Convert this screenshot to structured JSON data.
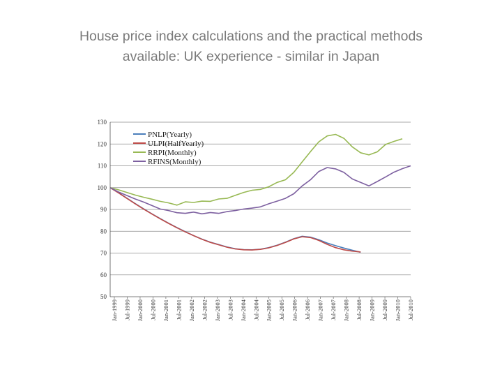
{
  "slide": {
    "title_line1": "House price index calculations and the practical methods",
    "title_line2": "available: UK experience - similar in Japan"
  },
  "chart_data": {
    "type": "line",
    "title": "",
    "xlabel": "",
    "ylabel": "",
    "ylim": [
      50,
      130
    ],
    "yticks": [
      50,
      60,
      70,
      80,
      90,
      100,
      110,
      120,
      130
    ],
    "grid": "horizontal",
    "legend_position": "top-left",
    "x_tick_labels": [
      "Jan-1999",
      "Jul-1999",
      "Jan-2000",
      "Jul-2000",
      "Jan-2001",
      "Jul-2001",
      "Jan-2002",
      "Jul-2002",
      "Jan-2003",
      "Jul-2003",
      "Jan-2004",
      "Jul-2004",
      "Jan-2005",
      "Jul-2005",
      "Jan-2006",
      "Jul-2006",
      "Jan-2007",
      "Jul-2007",
      "Jan-2008",
      "Jul-2008",
      "Jan-2009",
      "Jul-2009",
      "Jan-2010",
      "Jul-2010"
    ],
    "series": [
      {
        "name": "PNLP(Yearly)",
        "color": "#4a7ebb",
        "points": [
          [
            0,
            100
          ],
          [
            1,
            97.7
          ],
          [
            2,
            95.2
          ],
          [
            3,
            92.7
          ],
          [
            4,
            90.3
          ],
          [
            5,
            88
          ],
          [
            6,
            85.8
          ],
          [
            7,
            83.7
          ],
          [
            8,
            81.7
          ],
          [
            9,
            79.8
          ],
          [
            10,
            78
          ],
          [
            11,
            76.4
          ],
          [
            12,
            75
          ],
          [
            13,
            73.9
          ],
          [
            14,
            72.8
          ],
          [
            15,
            72
          ],
          [
            16,
            71.6
          ],
          [
            17,
            71.5
          ],
          [
            18,
            71.8
          ],
          [
            19,
            72.5
          ],
          [
            20,
            73.6
          ],
          [
            21,
            75
          ],
          [
            22,
            76.6
          ],
          [
            23,
            77.7
          ],
          [
            24,
            77.3
          ],
          [
            25,
            76.1
          ],
          [
            26,
            74.6
          ],
          [
            27,
            73.4
          ],
          [
            28,
            72.3
          ],
          [
            29,
            71.3
          ],
          [
            30,
            70.4
          ]
        ]
      },
      {
        "name": "ULPI(HalfYearly)",
        "color": "#be4b48",
        "points": [
          [
            0,
            100
          ],
          [
            1,
            97.6
          ],
          [
            2,
            95.1
          ],
          [
            3,
            92.6
          ],
          [
            4,
            90.2
          ],
          [
            5,
            87.9
          ],
          [
            6,
            85.7
          ],
          [
            7,
            83.6
          ],
          [
            8,
            81.6
          ],
          [
            9,
            79.7
          ],
          [
            10,
            78
          ],
          [
            11,
            76.3
          ],
          [
            12,
            74.9
          ],
          [
            13,
            73.8
          ],
          [
            14,
            72.7
          ],
          [
            15,
            71.9
          ],
          [
            16,
            71.5
          ],
          [
            17,
            71.4
          ],
          [
            18,
            71.7
          ],
          [
            19,
            72.4
          ],
          [
            20,
            73.5
          ],
          [
            21,
            74.9
          ],
          [
            22,
            76.5
          ],
          [
            23,
            77.5
          ],
          [
            24,
            77.1
          ],
          [
            25,
            75.8
          ],
          [
            26,
            74
          ],
          [
            27,
            72.5
          ],
          [
            28,
            71.5
          ],
          [
            29,
            70.9
          ],
          [
            30,
            70.5
          ]
        ]
      },
      {
        "name": "RRPI(Monthly)",
        "color": "#98b954",
        "points": [
          [
            0,
            100
          ],
          [
            1,
            99
          ],
          [
            2,
            97.8
          ],
          [
            3,
            96.6
          ],
          [
            4,
            95.6
          ],
          [
            5,
            94.7
          ],
          [
            6,
            93.7
          ],
          [
            7,
            93
          ],
          [
            8,
            92
          ],
          [
            9,
            93.5
          ],
          [
            10,
            93.2
          ],
          [
            11,
            93.8
          ],
          [
            12,
            93.7
          ],
          [
            13,
            94.8
          ],
          [
            14,
            95.1
          ],
          [
            15,
            96.5
          ],
          [
            16,
            97.8
          ],
          [
            17,
            98.8
          ],
          [
            18,
            99.2
          ],
          [
            19,
            100.4
          ],
          [
            20,
            102.4
          ],
          [
            21,
            103.6
          ],
          [
            22,
            107
          ],
          [
            23,
            111.8
          ],
          [
            24,
            116.5
          ],
          [
            25,
            121
          ],
          [
            26,
            123.7
          ],
          [
            27,
            124.4
          ],
          [
            28,
            122.6
          ],
          [
            29,
            118.7
          ],
          [
            30,
            116
          ],
          [
            31,
            115
          ],
          [
            32,
            116.4
          ],
          [
            33,
            119.8
          ],
          [
            34,
            121.2
          ],
          [
            35,
            122.4
          ]
        ]
      },
      {
        "name": "RFINS(Monthly)",
        "color": "#7d60a0",
        "points": [
          [
            0,
            100
          ],
          [
            1,
            98
          ],
          [
            2,
            96.4
          ],
          [
            3,
            94.8
          ],
          [
            4,
            93.4
          ],
          [
            5,
            91.8
          ],
          [
            6,
            90.2
          ],
          [
            7,
            89.5
          ],
          [
            8,
            88.5
          ],
          [
            9,
            88.2
          ],
          [
            10,
            88.8
          ],
          [
            11,
            88
          ],
          [
            12,
            88.6
          ],
          [
            13,
            88.2
          ],
          [
            14,
            89
          ],
          [
            15,
            89.5
          ],
          [
            16,
            90.2
          ],
          [
            17,
            90.6
          ],
          [
            18,
            91.2
          ],
          [
            19,
            92.6
          ],
          [
            20,
            93.8
          ],
          [
            21,
            95.1
          ],
          [
            22,
            97.2
          ],
          [
            23,
            100.8
          ],
          [
            24,
            103.6
          ],
          [
            25,
            107.4
          ],
          [
            26,
            109.2
          ],
          [
            27,
            108.6
          ],
          [
            28,
            107
          ],
          [
            29,
            104
          ],
          [
            30,
            102.4
          ],
          [
            31,
            100.8
          ],
          [
            32,
            102.8
          ],
          [
            33,
            104.9
          ],
          [
            34,
            107.1
          ],
          [
            35,
            108.7
          ],
          [
            36,
            110
          ]
        ]
      }
    ]
  }
}
